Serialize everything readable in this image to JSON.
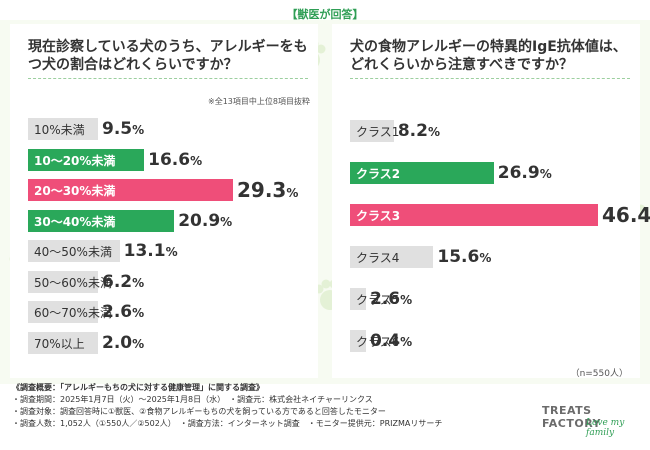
{
  "header": "【獣医が回答】",
  "colors": {
    "green": "#2aa85a",
    "pink": "#ef4e79",
    "gray": "#c8c8c8",
    "dark": "#333333"
  },
  "chart_data": [
    {
      "type": "bar",
      "orientation": "horizontal",
      "title": "現在診察している犬のうち、アレルギーをもつ犬の割合はどれくらいですか？",
      "note": "※全13項目中上位8項目抜粋",
      "categories": [
        "10%未満",
        "10〜20%未満",
        "20〜30%未満",
        "30〜40%未満",
        "40〜50%未満",
        "50〜60%未満",
        "60〜70%未満",
        "70%以上"
      ],
      "values": [
        9.5,
        16.6,
        29.3,
        20.9,
        13.1,
        6.2,
        2.6,
        2.0
      ],
      "value_labels": [
        "9.5",
        "16.6",
        "29.3",
        "20.9",
        "13.1",
        "6.2",
        "2.6",
        "2.0"
      ],
      "unit": "%",
      "highlight": [
        "none",
        "green",
        "pink",
        "green",
        "none",
        "none",
        "none",
        "none"
      ],
      "xlim": [
        0,
        29.3
      ]
    },
    {
      "type": "bar",
      "orientation": "horizontal",
      "title": "犬の食物アレルギーの特異的IgE抗体値は、どれくらいから注意すべきですか？",
      "categories": [
        "クラス1",
        "クラス2",
        "クラス3",
        "クラス4",
        "クラス5",
        "クラス6"
      ],
      "values": [
        8.2,
        26.9,
        46.4,
        15.6,
        2.6,
        0.4
      ],
      "value_labels": [
        "8.2",
        "26.9",
        "46.4",
        "15.6",
        "2.6",
        "0.4"
      ],
      "unit": "%",
      "highlight": [
        "none",
        "green",
        "pink",
        "none",
        "none",
        "none"
      ],
      "n_label": "（n=550人）",
      "xlim": [
        0,
        46.4
      ]
    }
  ],
  "footer": {
    "title": "《調査概要：「アレルギーもちの犬に対する健康管理」に関する調査》",
    "line1": "・調査期間：2025年1月7日（火）〜2025年1月8日（水）　・調査元：株式会社ネイチャーリンクス",
    "line2": "・調査対象：調査回答時に①獣医、②食物アレルギーもちの犬を飼っている方であると回答したモニター",
    "line3": "・調査人数：1,052人（①550人／②502人）　・調査方法：インターネット調査　・モニター提供元：PRIZMAリサーチ"
  },
  "logo": {
    "text": "TREATS FACTORY",
    "script": "Love my family"
  }
}
